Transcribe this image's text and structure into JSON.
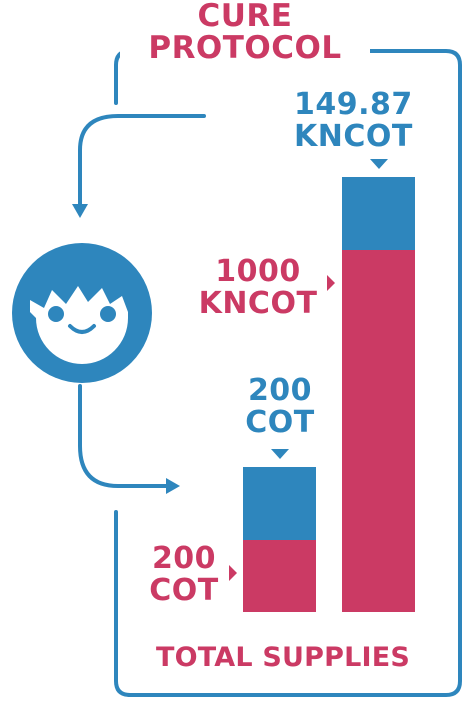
{
  "title": {
    "line1": "CURE",
    "line2": "PROTOCOL"
  },
  "colors": {
    "blue": "#2e86bd",
    "pink": "#cb3a64"
  },
  "icons": {
    "person": "smiling-boy-face-icon"
  },
  "bars": [
    {
      "top_label_line1": "200",
      "top_label_line2": "COT",
      "side_label_line1": "200",
      "side_label_line2": "COT",
      "top_segment_color": "blue",
      "bottom_segment_color": "pink"
    },
    {
      "top_label_line1": "149.87",
      "top_label_line2": "KNCOT",
      "side_label_line1": "1000",
      "side_label_line2": "KNCOT",
      "top_segment_color": "blue",
      "bottom_segment_color": "pink"
    }
  ],
  "footer": "TOTAL SUPPLIES"
}
